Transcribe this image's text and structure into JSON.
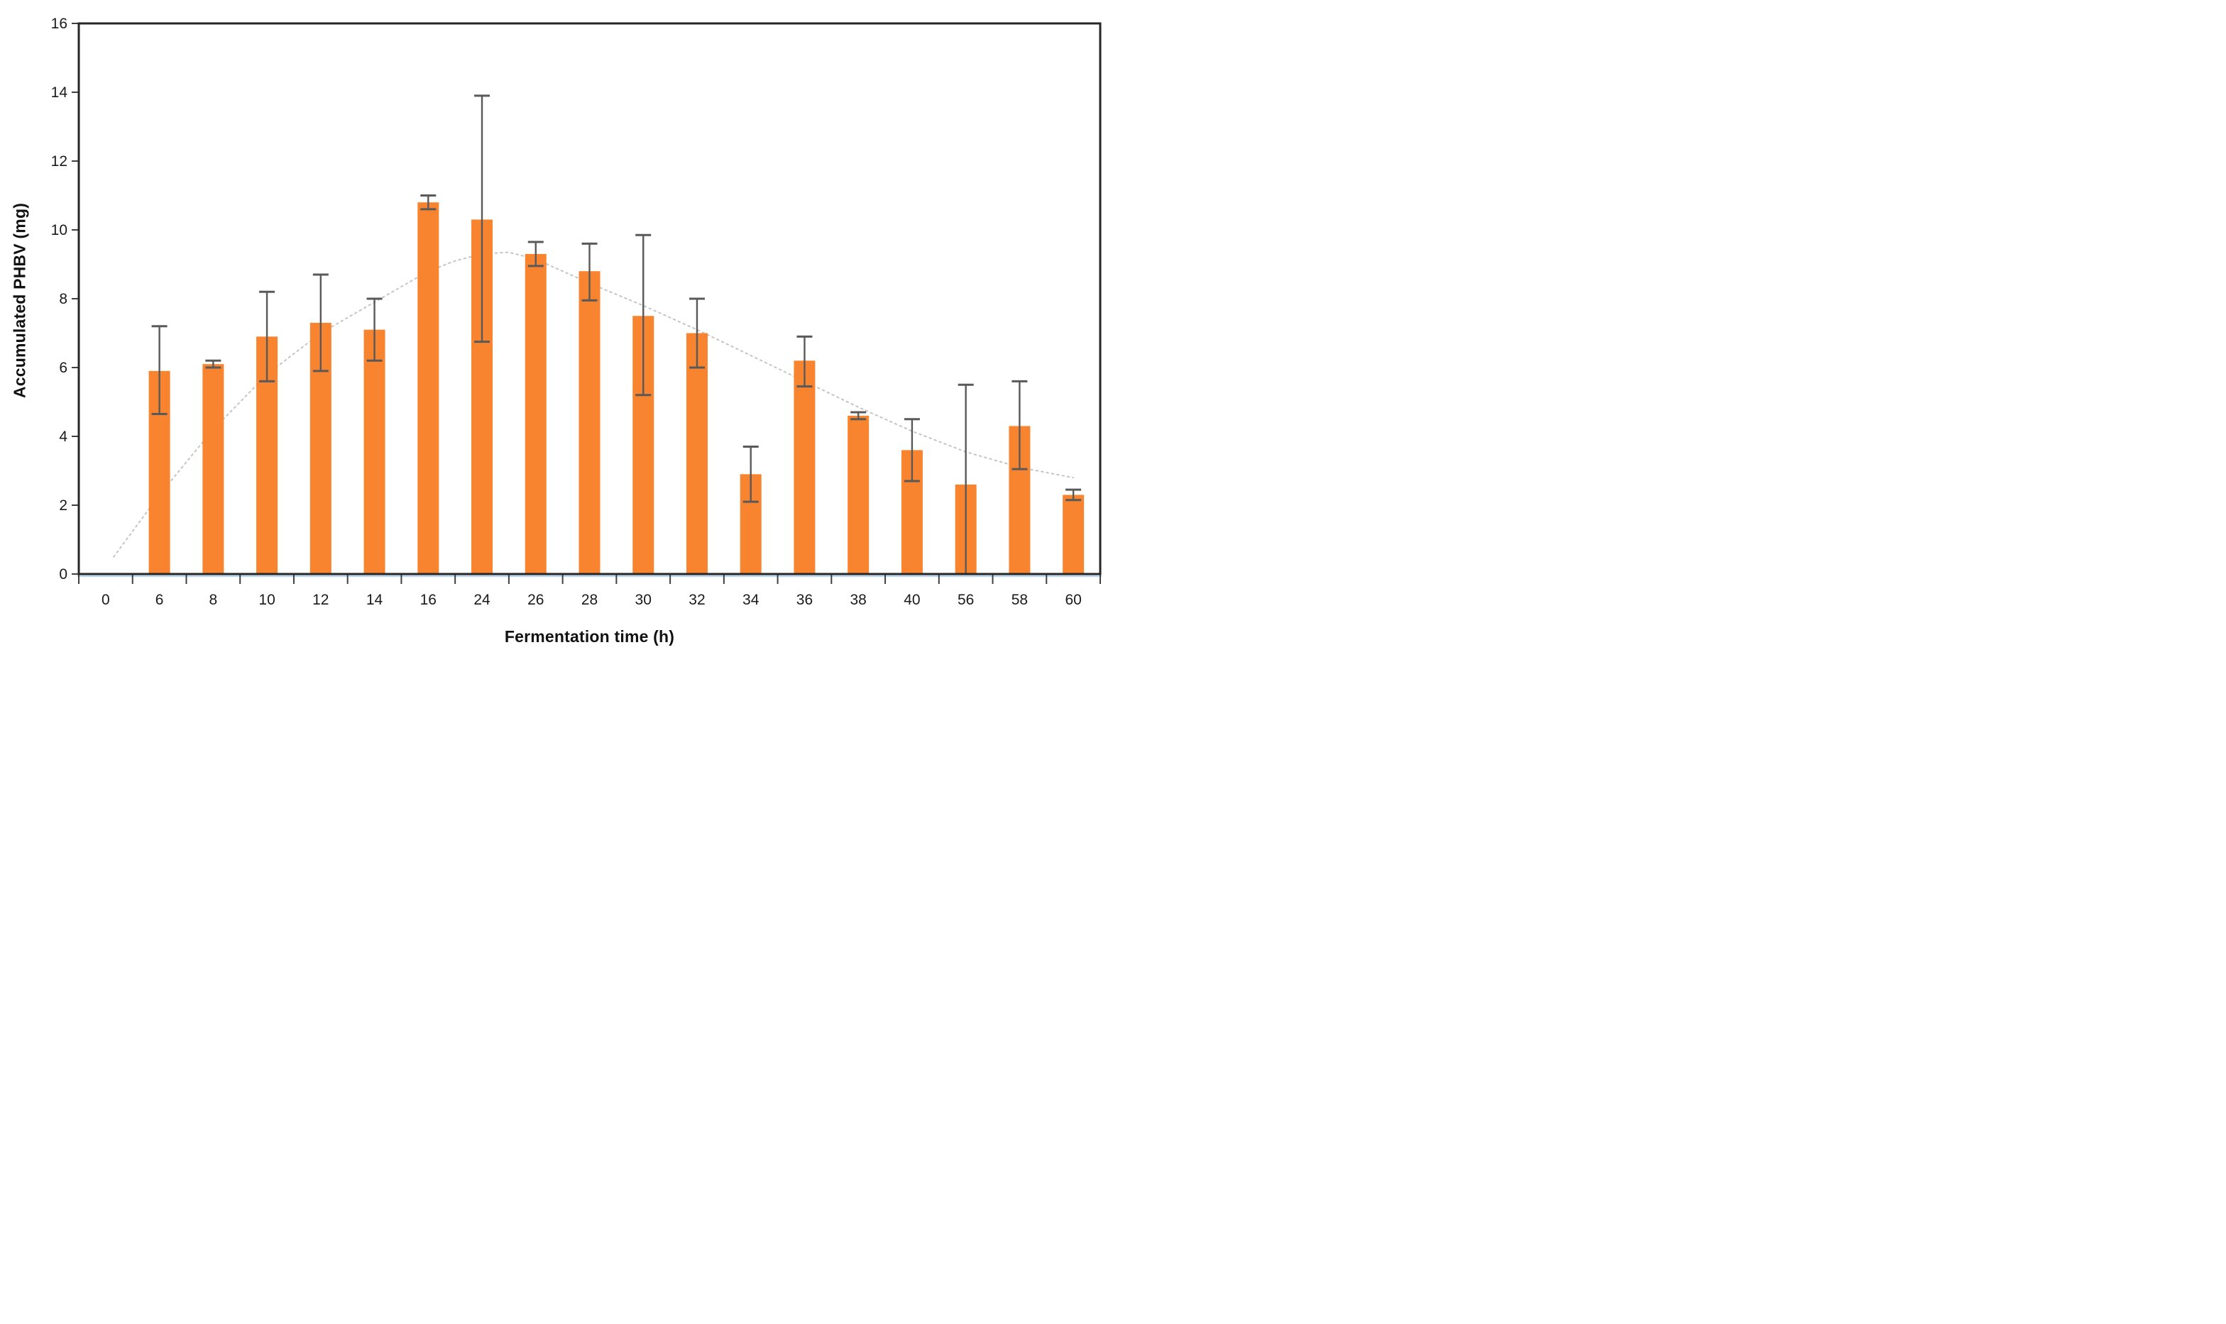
{
  "figure": {
    "xlabel": "Fermentation time (h)",
    "ylabel": "Accumulated PHBV (mg)"
  },
  "chart_data": {
    "type": "bar",
    "title": "",
    "xlabel": "Fermentation time (h)",
    "ylabel": "Accumulated PHBV (mg)",
    "categories": [
      "0",
      "6",
      "8",
      "10",
      "12",
      "14",
      "16",
      "24",
      "26",
      "28",
      "30",
      "32",
      "34",
      "36",
      "38",
      "40",
      "56",
      "58",
      "60"
    ],
    "values": [
      0,
      5.9,
      6.1,
      6.9,
      7.3,
      7.1,
      10.8,
      10.3,
      9.3,
      8.8,
      7.5,
      7.0,
      2.9,
      6.2,
      4.6,
      3.6,
      2.6,
      4.3,
      2.3
    ],
    "error_low": [
      null,
      4.65,
      6.0,
      5.6,
      5.9,
      6.2,
      10.6,
      6.75,
      8.95,
      7.95,
      5.2,
      6.0,
      2.1,
      5.45,
      4.5,
      2.7,
      0,
      3.05,
      2.15
    ],
    "error_high": [
      null,
      7.2,
      6.2,
      8.2,
      8.7,
      8.0,
      11.0,
      13.9,
      9.65,
      9.6,
      9.85,
      8.0,
      3.7,
      6.9,
      4.7,
      4.5,
      5.5,
      5.6,
      2.45
    ],
    "trendline": {
      "style": "dotted",
      "x": [
        0.15,
        1,
        2,
        3,
        4,
        5,
        6,
        6.5,
        7,
        7.5,
        8,
        9,
        10,
        11,
        12,
        13,
        14,
        15,
        16,
        17,
        18
      ],
      "y": [
        0.5,
        2.3,
        4.2,
        5.8,
        7.0,
        7.9,
        8.8,
        9.1,
        9.3,
        9.35,
        9.15,
        8.45,
        7.8,
        7.1,
        6.35,
        5.6,
        4.85,
        4.15,
        3.55,
        3.1,
        2.8
      ]
    },
    "ylim": [
      0,
      16
    ],
    "ytick_step": 2,
    "grid": false,
    "legend": false,
    "colors": {
      "bar": "#F9842F",
      "error": "#595959",
      "trend": "#C4C4C4",
      "axis": "#262626",
      "tick": "#404040",
      "text": "#1A1A1A",
      "axis_underline": "#BDD7EE"
    }
  }
}
